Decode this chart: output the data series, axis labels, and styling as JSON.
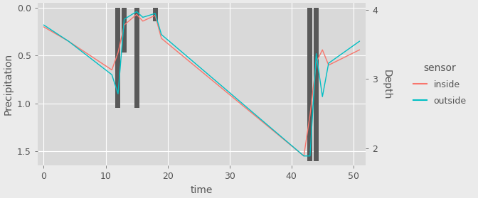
{
  "bg_color": "#EBEBEB",
  "plot_bg": "#D9D9D9",
  "grid_color": "#FFFFFF",
  "xlabel": "time",
  "ylabel_left": "Precipitation",
  "ylabel_right": "Depth",
  "xlim": [
    -1,
    52
  ],
  "ylim_left_top": -0.05,
  "ylim_left_bottom": 1.65,
  "ylim_right_bottom": 1.75,
  "ylim_right_top": 4.1,
  "xticks": [
    0,
    10,
    20,
    30,
    40,
    50
  ],
  "yticks_left": [
    0.0,
    0.5,
    1.0,
    1.5
  ],
  "yticks_right": [
    2,
    3,
    4
  ],
  "inside_x": [
    0,
    4,
    11,
    12,
    13,
    15,
    16,
    18,
    19,
    42,
    43,
    44,
    45,
    46,
    51
  ],
  "inside_y": [
    0.2,
    0.35,
    0.65,
    0.47,
    0.18,
    0.07,
    0.14,
    0.08,
    0.32,
    1.55,
    1.12,
    0.57,
    0.44,
    0.6,
    0.44
  ],
  "outside_x": [
    0,
    4,
    11,
    12,
    13,
    15,
    16,
    18,
    19,
    42,
    43,
    44,
    45,
    46,
    51
  ],
  "outside_y": [
    0.18,
    0.35,
    0.7,
    0.9,
    0.12,
    0.04,
    0.1,
    0.06,
    0.28,
    1.55,
    1.55,
    0.48,
    0.93,
    0.58,
    0.35
  ],
  "bar_x": [
    12,
    13,
    15,
    18,
    43,
    44
  ],
  "bar_heights": [
    1.05,
    0.47,
    1.05,
    0.14,
    1.6,
    1.6
  ],
  "bar_width": 0.8,
  "bar_color": "#595959",
  "inside_color": "#F8766D",
  "outside_color": "#00BFC4",
  "legend_title": "sensor",
  "legend_labels": [
    "inside",
    "outside"
  ]
}
